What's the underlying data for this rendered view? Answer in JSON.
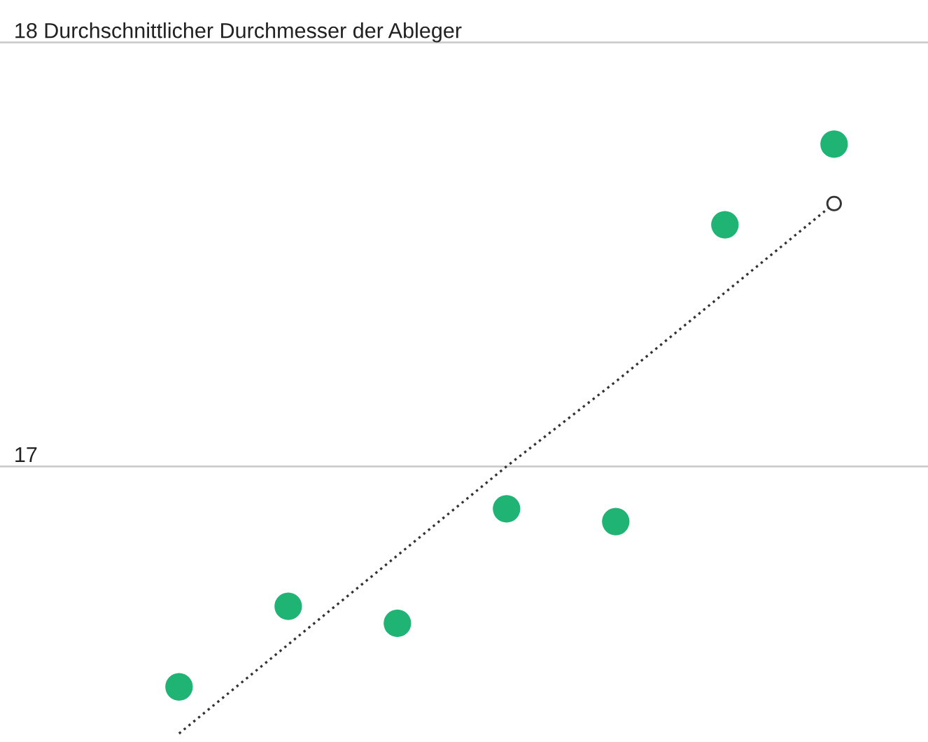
{
  "chart_data": {
    "type": "scatter",
    "ylabel": "Durchschnittlicher Durchmesser der Ableger",
    "categories": [
      null,
      null,
      null,
      null,
      null,
      null,
      null
    ],
    "series": [
      {
        "color": "#1fb374",
        "marker": "circle",
        "values": [
          16.48,
          16.67,
          16.63,
          16.9,
          16.87,
          17.57,
          17.76
        ]
      },
      {
        "type": "line",
        "color": "#333333",
        "line_style": "dotted",
        "values": [
          16.37,
          16.58,
          16.79,
          17.0,
          17.2,
          17.41,
          17.62
        ]
      }
    ],
    "ylim": [
      16.35,
      18.1
    ],
    "yticks": [
      17,
      18
    ],
    "grid": "y"
  }
}
